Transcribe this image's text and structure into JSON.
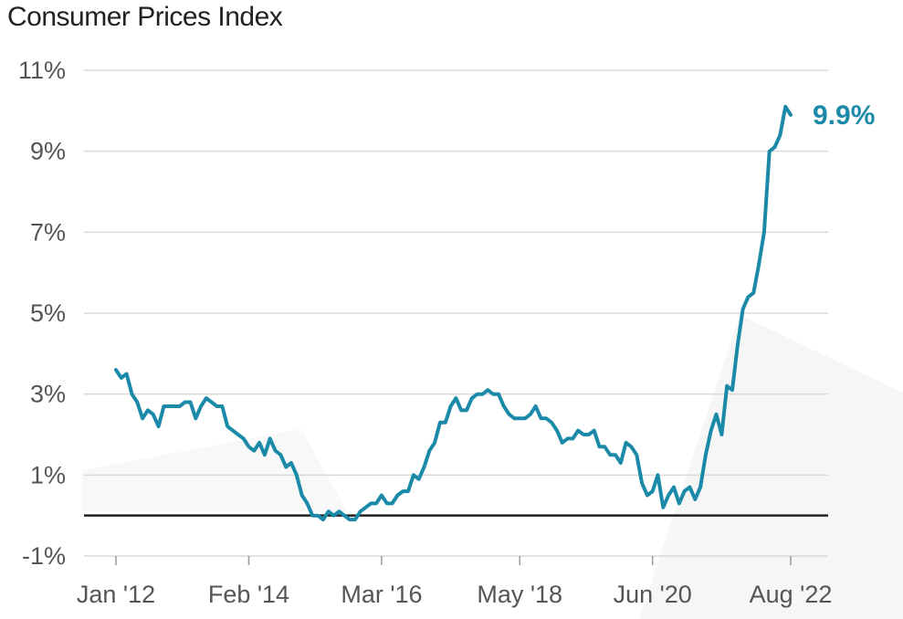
{
  "chart_data": {
    "type": "line",
    "title": "Consumer Prices Index",
    "xlabel": "",
    "ylabel": "",
    "ylim": [
      -1,
      11
    ],
    "y_ticks": [
      -1,
      1,
      3,
      5,
      7,
      9,
      11
    ],
    "y_tick_labels": [
      "-1%",
      "1%",
      "3%",
      "5%",
      "7%",
      "9%",
      "11%"
    ],
    "x_ticks": [
      "2012-01",
      "2014-02",
      "2016-03",
      "2018-05",
      "2020-06",
      "2022-08"
    ],
    "x_tick_labels": [
      "Jan '12",
      "Feb '14",
      "Mar '16",
      "May '18",
      "Jun '20",
      "Aug '22"
    ],
    "grid": true,
    "zero_line": true,
    "line_color": "#1b8aa8",
    "end_label": "9.9%",
    "series": [
      {
        "values": [
          {
            "x": "2012-01",
            "y": 3.6
          },
          {
            "x": "2012-02",
            "y": 3.4
          },
          {
            "x": "2012-03",
            "y": 3.5
          },
          {
            "x": "2012-04",
            "y": 3.0
          },
          {
            "x": "2012-05",
            "y": 2.8
          },
          {
            "x": "2012-06",
            "y": 2.4
          },
          {
            "x": "2012-07",
            "y": 2.6
          },
          {
            "x": "2012-08",
            "y": 2.5
          },
          {
            "x": "2012-09",
            "y": 2.2
          },
          {
            "x": "2012-10",
            "y": 2.7
          },
          {
            "x": "2012-11",
            "y": 2.7
          },
          {
            "x": "2012-12",
            "y": 2.7
          },
          {
            "x": "2013-01",
            "y": 2.7
          },
          {
            "x": "2013-02",
            "y": 2.8
          },
          {
            "x": "2013-03",
            "y": 2.8
          },
          {
            "x": "2013-04",
            "y": 2.4
          },
          {
            "x": "2013-05",
            "y": 2.7
          },
          {
            "x": "2013-06",
            "y": 2.9
          },
          {
            "x": "2013-07",
            "y": 2.8
          },
          {
            "x": "2013-08",
            "y": 2.7
          },
          {
            "x": "2013-09",
            "y": 2.7
          },
          {
            "x": "2013-10",
            "y": 2.2
          },
          {
            "x": "2013-11",
            "y": 2.1
          },
          {
            "x": "2013-12",
            "y": 2.0
          },
          {
            "x": "2014-01",
            "y": 1.9
          },
          {
            "x": "2014-02",
            "y": 1.7
          },
          {
            "x": "2014-03",
            "y": 1.6
          },
          {
            "x": "2014-04",
            "y": 1.8
          },
          {
            "x": "2014-05",
            "y": 1.5
          },
          {
            "x": "2014-06",
            "y": 1.9
          },
          {
            "x": "2014-07",
            "y": 1.6
          },
          {
            "x": "2014-08",
            "y": 1.5
          },
          {
            "x": "2014-09",
            "y": 1.2
          },
          {
            "x": "2014-10",
            "y": 1.3
          },
          {
            "x": "2014-11",
            "y": 1.0
          },
          {
            "x": "2014-12",
            "y": 0.5
          },
          {
            "x": "2015-01",
            "y": 0.3
          },
          {
            "x": "2015-02",
            "y": 0.0
          },
          {
            "x": "2015-03",
            "y": 0.0
          },
          {
            "x": "2015-04",
            "y": -0.1
          },
          {
            "x": "2015-05",
            "y": 0.1
          },
          {
            "x": "2015-06",
            "y": 0.0
          },
          {
            "x": "2015-07",
            "y": 0.1
          },
          {
            "x": "2015-08",
            "y": 0.0
          },
          {
            "x": "2015-09",
            "y": -0.1
          },
          {
            "x": "2015-10",
            "y": -0.1
          },
          {
            "x": "2015-11",
            "y": 0.1
          },
          {
            "x": "2015-12",
            "y": 0.2
          },
          {
            "x": "2016-01",
            "y": 0.3
          },
          {
            "x": "2016-02",
            "y": 0.3
          },
          {
            "x": "2016-03",
            "y": 0.5
          },
          {
            "x": "2016-04",
            "y": 0.3
          },
          {
            "x": "2016-05",
            "y": 0.3
          },
          {
            "x": "2016-06",
            "y": 0.5
          },
          {
            "x": "2016-07",
            "y": 0.6
          },
          {
            "x": "2016-08",
            "y": 0.6
          },
          {
            "x": "2016-09",
            "y": 1.0
          },
          {
            "x": "2016-10",
            "y": 0.9
          },
          {
            "x": "2016-11",
            "y": 1.2
          },
          {
            "x": "2016-12",
            "y": 1.6
          },
          {
            "x": "2017-01",
            "y": 1.8
          },
          {
            "x": "2017-02",
            "y": 2.3
          },
          {
            "x": "2017-03",
            "y": 2.3
          },
          {
            "x": "2017-04",
            "y": 2.7
          },
          {
            "x": "2017-05",
            "y": 2.9
          },
          {
            "x": "2017-06",
            "y": 2.6
          },
          {
            "x": "2017-07",
            "y": 2.6
          },
          {
            "x": "2017-08",
            "y": 2.9
          },
          {
            "x": "2017-09",
            "y": 3.0
          },
          {
            "x": "2017-10",
            "y": 3.0
          },
          {
            "x": "2017-11",
            "y": 3.1
          },
          {
            "x": "2017-12",
            "y": 3.0
          },
          {
            "x": "2018-01",
            "y": 3.0
          },
          {
            "x": "2018-02",
            "y": 2.7
          },
          {
            "x": "2018-03",
            "y": 2.5
          },
          {
            "x": "2018-04",
            "y": 2.4
          },
          {
            "x": "2018-05",
            "y": 2.4
          },
          {
            "x": "2018-06",
            "y": 2.4
          },
          {
            "x": "2018-07",
            "y": 2.5
          },
          {
            "x": "2018-08",
            "y": 2.7
          },
          {
            "x": "2018-09",
            "y": 2.4
          },
          {
            "x": "2018-10",
            "y": 2.4
          },
          {
            "x": "2018-11",
            "y": 2.3
          },
          {
            "x": "2018-12",
            "y": 2.1
          },
          {
            "x": "2019-01",
            "y": 1.8
          },
          {
            "x": "2019-02",
            "y": 1.9
          },
          {
            "x": "2019-03",
            "y": 1.9
          },
          {
            "x": "2019-04",
            "y": 2.1
          },
          {
            "x": "2019-05",
            "y": 2.0
          },
          {
            "x": "2019-06",
            "y": 2.0
          },
          {
            "x": "2019-07",
            "y": 2.1
          },
          {
            "x": "2019-08",
            "y": 1.7
          },
          {
            "x": "2019-09",
            "y": 1.7
          },
          {
            "x": "2019-10",
            "y": 1.5
          },
          {
            "x": "2019-11",
            "y": 1.5
          },
          {
            "x": "2019-12",
            "y": 1.3
          },
          {
            "x": "2020-01",
            "y": 1.8
          },
          {
            "x": "2020-02",
            "y": 1.7
          },
          {
            "x": "2020-03",
            "y": 1.5
          },
          {
            "x": "2020-04",
            "y": 0.8
          },
          {
            "x": "2020-05",
            "y": 0.5
          },
          {
            "x": "2020-06",
            "y": 0.6
          },
          {
            "x": "2020-07",
            "y": 1.0
          },
          {
            "x": "2020-08",
            "y": 0.2
          },
          {
            "x": "2020-09",
            "y": 0.5
          },
          {
            "x": "2020-10",
            "y": 0.7
          },
          {
            "x": "2020-11",
            "y": 0.3
          },
          {
            "x": "2020-12",
            "y": 0.6
          },
          {
            "x": "2021-01",
            "y": 0.7
          },
          {
            "x": "2021-02",
            "y": 0.4
          },
          {
            "x": "2021-03",
            "y": 0.7
          },
          {
            "x": "2021-04",
            "y": 1.5
          },
          {
            "x": "2021-05",
            "y": 2.1
          },
          {
            "x": "2021-06",
            "y": 2.5
          },
          {
            "x": "2021-07",
            "y": 2.0
          },
          {
            "x": "2021-08",
            "y": 3.2
          },
          {
            "x": "2021-09",
            "y": 3.1
          },
          {
            "x": "2021-10",
            "y": 4.2
          },
          {
            "x": "2021-11",
            "y": 5.1
          },
          {
            "x": "2021-12",
            "y": 5.4
          },
          {
            "x": "2022-01",
            "y": 5.5
          },
          {
            "x": "2022-02",
            "y": 6.2
          },
          {
            "x": "2022-03",
            "y": 7.0
          },
          {
            "x": "2022-04",
            "y": 9.0
          },
          {
            "x": "2022-05",
            "y": 9.1
          },
          {
            "x": "2022-06",
            "y": 9.4
          },
          {
            "x": "2022-07",
            "y": 10.1
          },
          {
            "x": "2022-08",
            "y": 9.9
          }
        ]
      }
    ]
  }
}
